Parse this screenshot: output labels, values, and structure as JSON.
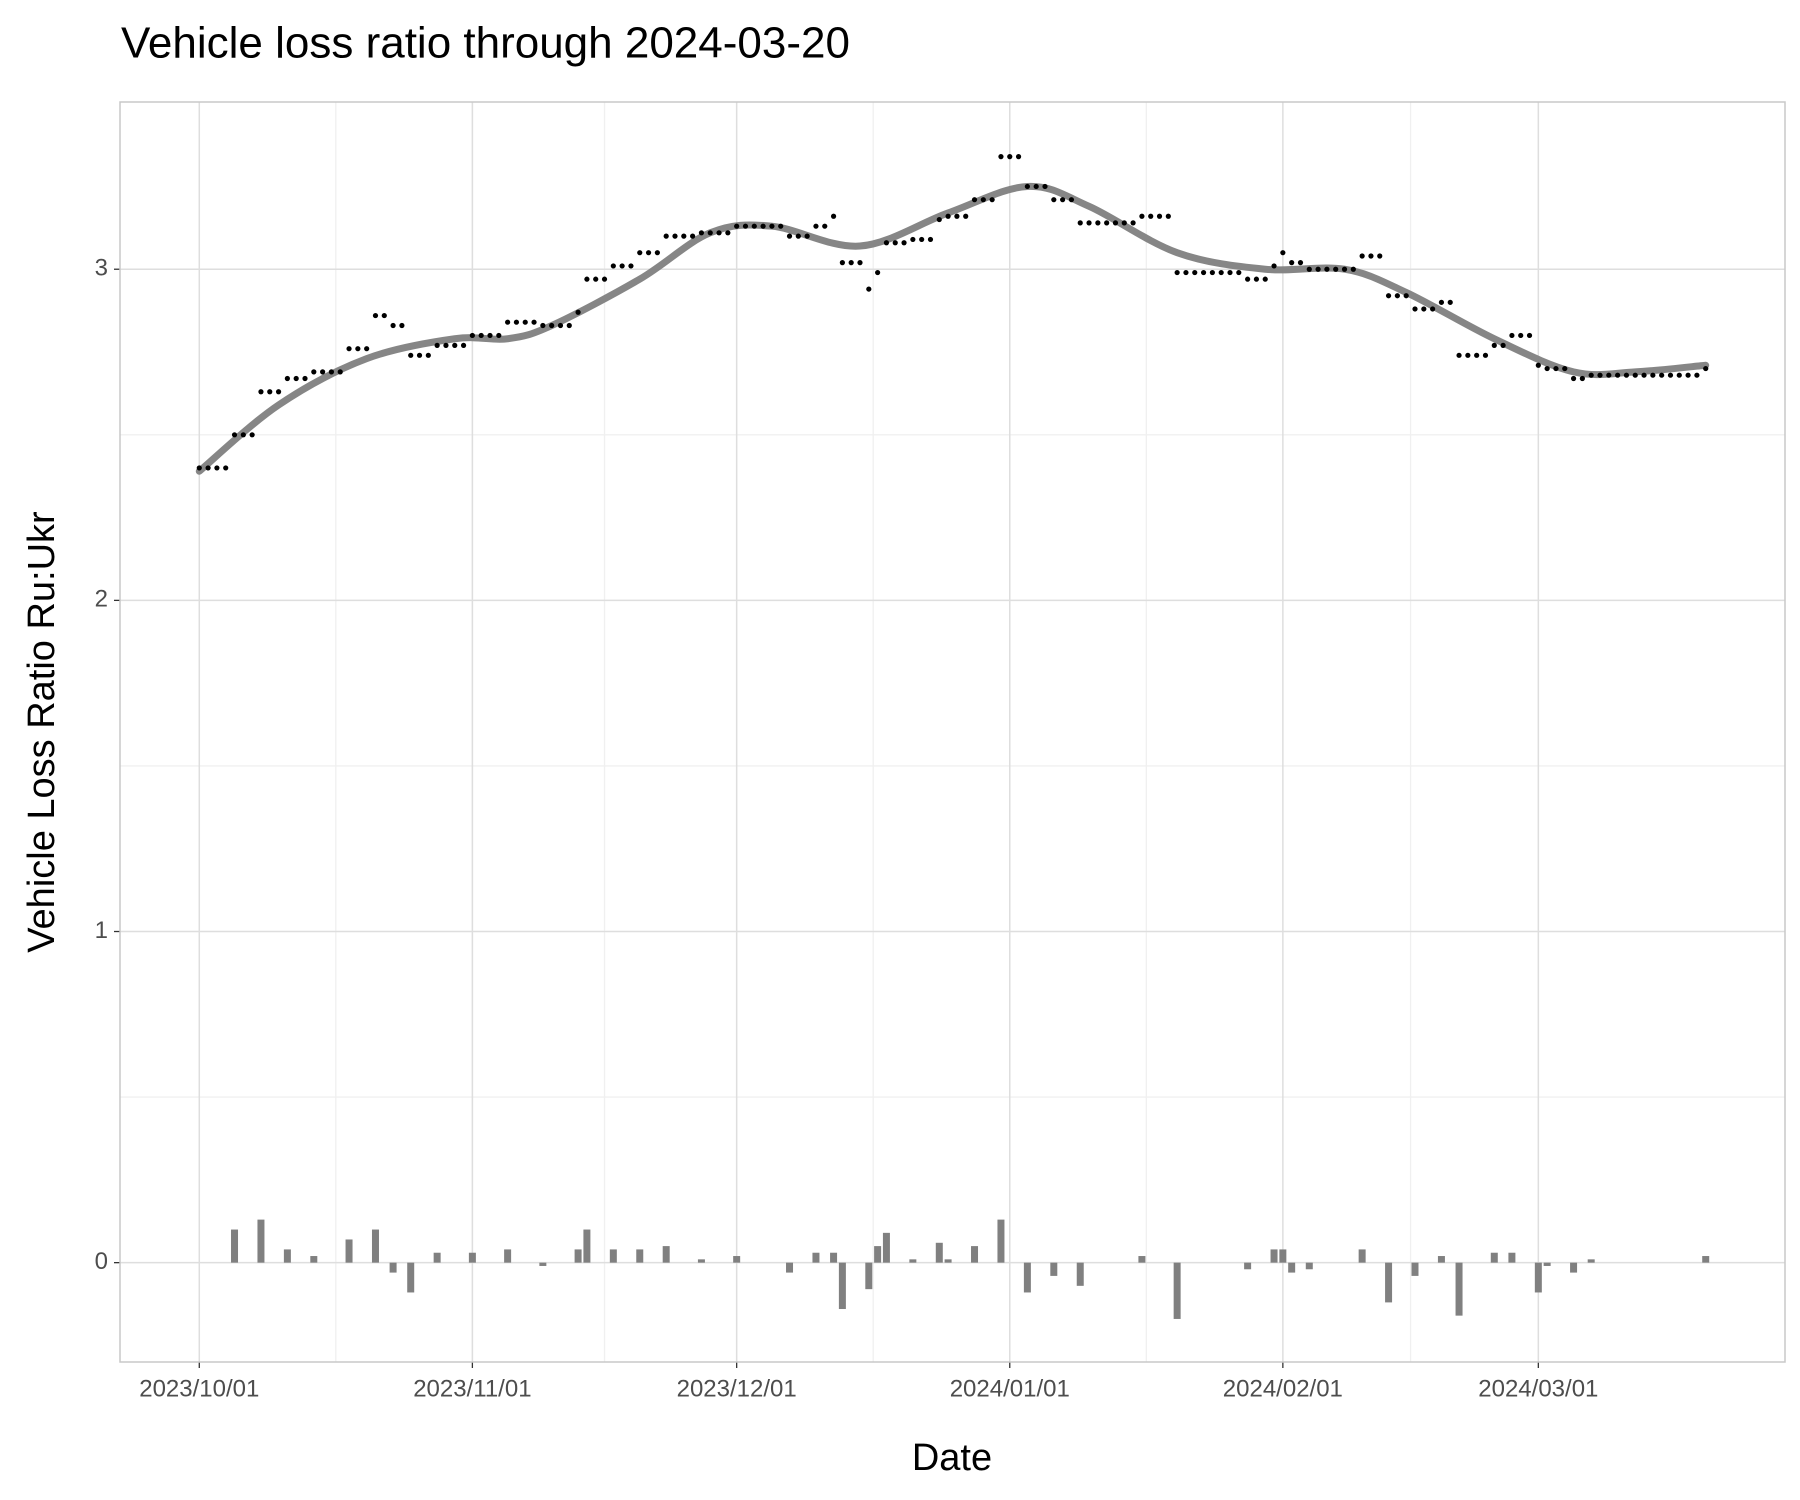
{
  "chart_data": {
    "type": "combo",
    "title": "Vehicle loss ratio through 2024-03-20",
    "x_label": "Date",
    "y_label": "Vehicle Loss Ratio Ru:Ukr",
    "grid": true,
    "xlim": [
      "2023-09-22",
      "2024-03-29"
    ],
    "ylim": [
      -0.3,
      3.505
    ],
    "yticks": [
      0,
      1,
      2,
      3
    ],
    "xticks": [
      {
        "value": "2023-10-01",
        "label": "2023/10/01"
      },
      {
        "value": "2023-11-01",
        "label": "2023/11/01"
      },
      {
        "value": "2023-12-01",
        "label": "2023/12/01"
      },
      {
        "value": "2024-01-01",
        "label": "2024/01/01"
      },
      {
        "value": "2024-02-01",
        "label": "2024/02/01"
      },
      {
        "value": "2024-03-01",
        "label": "2024/03/01"
      }
    ],
    "x": [
      "2023-10-01",
      "2023-10-02",
      "2023-10-03",
      "2023-10-04",
      "2023-10-05",
      "2023-10-06",
      "2023-10-07",
      "2023-10-08",
      "2023-10-09",
      "2023-10-10",
      "2023-10-11",
      "2023-10-12",
      "2023-10-13",
      "2023-10-14",
      "2023-10-15",
      "2023-10-16",
      "2023-10-17",
      "2023-10-18",
      "2023-10-19",
      "2023-10-20",
      "2023-10-21",
      "2023-10-22",
      "2023-10-23",
      "2023-10-24",
      "2023-10-25",
      "2023-10-26",
      "2023-10-27",
      "2023-10-28",
      "2023-10-29",
      "2023-10-30",
      "2023-10-31",
      "2023-11-01",
      "2023-11-02",
      "2023-11-03",
      "2023-11-04",
      "2023-11-05",
      "2023-11-06",
      "2023-11-07",
      "2023-11-08",
      "2023-11-09",
      "2023-11-10",
      "2023-11-11",
      "2023-11-12",
      "2023-11-13",
      "2023-11-14",
      "2023-11-15",
      "2023-11-16",
      "2023-11-17",
      "2023-11-18",
      "2023-11-19",
      "2023-11-20",
      "2023-11-21",
      "2023-11-22",
      "2023-11-23",
      "2023-11-24",
      "2023-11-25",
      "2023-11-26",
      "2023-11-27",
      "2023-11-28",
      "2023-11-29",
      "2023-11-30",
      "2023-12-01",
      "2023-12-02",
      "2023-12-03",
      "2023-12-04",
      "2023-12-05",
      "2023-12-06",
      "2023-12-07",
      "2023-12-08",
      "2023-12-09",
      "2023-12-10",
      "2023-12-11",
      "2023-12-12",
      "2023-12-13",
      "2023-12-14",
      "2023-12-15",
      "2023-12-16",
      "2023-12-17",
      "2023-12-18",
      "2023-12-19",
      "2023-12-20",
      "2023-12-21",
      "2023-12-22",
      "2023-12-23",
      "2023-12-24",
      "2023-12-25",
      "2023-12-26",
      "2023-12-27",
      "2023-12-28",
      "2023-12-29",
      "2023-12-30",
      "2023-12-31",
      "2024-01-01",
      "2024-01-02",
      "2024-01-03",
      "2024-01-04",
      "2024-01-05",
      "2024-01-06",
      "2024-01-07",
      "2024-01-08",
      "2024-01-09",
      "2024-01-10",
      "2024-01-11",
      "2024-01-12",
      "2024-01-13",
      "2024-01-14",
      "2024-01-15",
      "2024-01-16",
      "2024-01-17",
      "2024-01-18",
      "2024-01-19",
      "2024-01-20",
      "2024-01-21",
      "2024-01-22",
      "2024-01-23",
      "2024-01-24",
      "2024-01-25",
      "2024-01-26",
      "2024-01-27",
      "2024-01-28",
      "2024-01-29",
      "2024-01-30",
      "2024-01-31",
      "2024-02-01",
      "2024-02-02",
      "2024-02-03",
      "2024-02-04",
      "2024-02-05",
      "2024-02-06",
      "2024-02-07",
      "2024-02-08",
      "2024-02-09",
      "2024-02-10",
      "2024-02-11",
      "2024-02-12",
      "2024-02-13",
      "2024-02-14",
      "2024-02-15",
      "2024-02-16",
      "2024-02-17",
      "2024-02-18",
      "2024-02-19",
      "2024-02-20",
      "2024-02-21",
      "2024-02-22",
      "2024-02-23",
      "2024-02-24",
      "2024-02-25",
      "2024-02-26",
      "2024-02-27",
      "2024-02-28",
      "2024-02-29",
      "2024-03-01",
      "2024-03-02",
      "2024-03-03",
      "2024-03-04",
      "2024-03-05",
      "2024-03-06",
      "2024-03-07",
      "2024-03-08",
      "2024-03-09",
      "2024-03-10",
      "2024-03-11",
      "2024-03-12",
      "2024-03-13",
      "2024-03-14",
      "2024-03-15",
      "2024-03-16",
      "2024-03-17",
      "2024-03-18",
      "2024-03-19",
      "2024-03-20"
    ],
    "series": [
      {
        "type": "bar",
        "color": "#808080",
        "values": [
          null,
          0,
          0,
          0,
          0.1,
          0,
          0,
          0.13,
          0,
          0,
          0.04,
          0,
          0,
          0.02,
          0,
          0,
          0,
          0.07,
          0,
          0,
          0.1,
          0,
          -0.03,
          0,
          -0.09,
          0,
          0,
          0.03,
          0,
          0,
          0,
          0.03,
          0,
          0,
          0,
          0.04,
          0,
          0,
          0,
          -0.01,
          0,
          0,
          0,
          0.04,
          0.1,
          0,
          0,
          0.04,
          0,
          0,
          0.04,
          0,
          0,
          0.05,
          0,
          0,
          0,
          0.01,
          0,
          0,
          0,
          0.02,
          0,
          0,
          0,
          0,
          0,
          -0.03,
          0,
          0,
          0.03,
          0,
          0.03,
          -0.14,
          0,
          0,
          -0.08,
          0.05,
          0.09,
          0,
          0,
          0.01,
          0,
          0,
          0.06,
          0.01,
          0,
          0,
          0.05,
          0,
          0,
          0.13,
          0,
          0,
          -0.09,
          0,
          0,
          -0.04,
          0,
          0,
          -0.07,
          0,
          0,
          0,
          0,
          0,
          0,
          0.02,
          0,
          0,
          0,
          -0.17,
          0,
          0,
          0,
          0,
          0,
          0,
          0,
          -0.02,
          0,
          0,
          0.04,
          0.04,
          -0.03,
          0,
          -0.02,
          0,
          0,
          0,
          0,
          0,
          0.04,
          0,
          0,
          -0.12,
          0,
          0,
          -0.04,
          0,
          0,
          0.02,
          0,
          -0.16,
          0,
          0,
          0,
          0.03,
          0,
          0.03,
          0,
          0,
          -0.09,
          -0.01,
          0,
          0,
          -0.03,
          0,
          0.01,
          0,
          0,
          0,
          0,
          0,
          0,
          0,
          0,
          0,
          0,
          0,
          0,
          0.02
        ]
      },
      {
        "type": "scatter",
        "color": "#000000",
        "values": [
          2.4,
          2.4,
          2.4,
          2.4,
          2.5,
          2.5,
          2.5,
          2.63,
          2.63,
          2.63,
          2.67,
          2.67,
          2.67,
          2.69,
          2.69,
          2.69,
          2.69,
          2.76,
          2.76,
          2.76,
          2.86,
          2.86,
          2.83,
          2.83,
          2.74,
          2.74,
          2.74,
          2.77,
          2.77,
          2.77,
          2.77,
          2.8,
          2.8,
          2.8,
          2.8,
          2.84,
          2.84,
          2.84,
          2.84,
          2.83,
          2.83,
          2.83,
          2.83,
          2.87,
          2.97,
          2.97,
          2.97,
          3.01,
          3.01,
          3.01,
          3.05,
          3.05,
          3.05,
          3.1,
          3.1,
          3.1,
          3.1,
          3.11,
          3.11,
          3.11,
          3.11,
          3.13,
          3.13,
          3.13,
          3.13,
          3.13,
          3.13,
          3.1,
          3.1,
          3.1,
          3.13,
          3.13,
          3.16,
          3.02,
          3.02,
          3.02,
          2.94,
          2.99,
          3.08,
          3.08,
          3.08,
          3.09,
          3.09,
          3.09,
          3.15,
          3.16,
          3.16,
          3.16,
          3.21,
          3.21,
          3.21,
          3.34,
          3.34,
          3.34,
          3.25,
          3.25,
          3.25,
          3.21,
          3.21,
          3.21,
          3.14,
          3.14,
          3.14,
          3.14,
          3.14,
          3.14,
          3.14,
          3.16,
          3.16,
          3.16,
          3.16,
          2.99,
          2.99,
          2.99,
          2.99,
          2.99,
          2.99,
          2.99,
          2.99,
          2.97,
          2.97,
          2.97,
          3.01,
          3.05,
          3.02,
          3.02,
          3.0,
          3.0,
          3.0,
          3.0,
          3.0,
          3.0,
          3.04,
          3.04,
          3.04,
          2.92,
          2.92,
          2.92,
          2.88,
          2.88,
          2.88,
          2.9,
          2.9,
          2.74,
          2.74,
          2.74,
          2.74,
          2.77,
          2.77,
          2.8,
          2.8,
          2.8,
          2.71,
          2.7,
          2.7,
          2.7,
          2.67,
          2.67,
          2.68,
          2.68,
          2.68,
          2.68,
          2.68,
          2.68,
          2.68,
          2.68,
          2.68,
          2.68,
          2.68,
          2.68,
          2.68,
          2.7
        ]
      },
      {
        "type": "line",
        "color": "#808080",
        "x": [
          "2023-10-01",
          "2023-10-10",
          "2023-10-20",
          "2023-10-30",
          "2023-11-05",
          "2023-11-10",
          "2023-11-20",
          "2023-11-28",
          "2023-12-05",
          "2023-12-15",
          "2023-12-25",
          "2024-01-03",
          "2024-01-10",
          "2024-01-20",
          "2024-01-30",
          "2024-02-08",
          "2024-02-15",
          "2024-02-25",
          "2024-03-05",
          "2024-03-12",
          "2024-03-20"
        ],
        "values": [
          2.39,
          2.59,
          2.73,
          2.79,
          2.79,
          2.83,
          2.97,
          3.11,
          3.13,
          3.07,
          3.17,
          3.25,
          3.19,
          3.05,
          3.0,
          3.0,
          2.93,
          2.79,
          2.69,
          2.69,
          2.71
        ]
      }
    ]
  }
}
